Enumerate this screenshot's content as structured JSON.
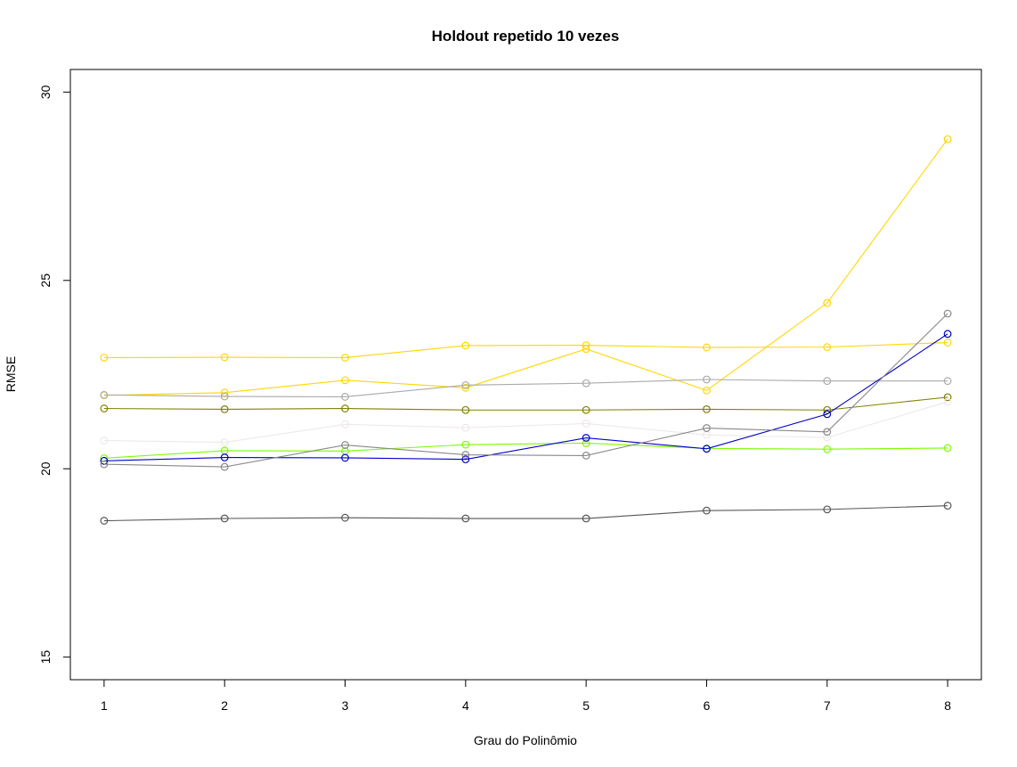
{
  "chart_data": {
    "type": "line",
    "title": "Holdout repetido 10 vezes",
    "xlabel": "Grau do Polinômio",
    "ylabel": "RMSE",
    "x": [
      1,
      2,
      3,
      4,
      5,
      6,
      7,
      8
    ],
    "xlim": [
      0.72,
      8.28
    ],
    "ylim": [
      14.4,
      30.6
    ],
    "yticks": [
      15,
      20,
      25,
      30
    ],
    "xticks": [
      1,
      2,
      3,
      4,
      5,
      6,
      7,
      8
    ],
    "marker": "open-circle",
    "grid": false,
    "series": [
      {
        "color": "#FFD700",
        "values": [
          21.95,
          22.02,
          22.35,
          22.15,
          23.18,
          22.08,
          24.4,
          28.75
        ]
      },
      {
        "color": "#FFD700",
        "values": [
          22.95,
          22.96,
          22.95,
          23.27,
          23.28,
          23.22,
          23.23,
          23.35
        ]
      },
      {
        "color": "#AAAAAA",
        "values": [
          21.96,
          21.92,
          21.91,
          22.22,
          22.27,
          22.37,
          22.33,
          22.33
        ]
      },
      {
        "color": "#808000",
        "values": [
          21.6,
          21.58,
          21.6,
          21.56,
          21.56,
          21.58,
          21.56,
          21.9
        ]
      },
      {
        "color": "#EEE8E8",
        "values": [
          20.75,
          20.7,
          21.18,
          21.09,
          21.2,
          20.9,
          20.83,
          21.78
        ]
      },
      {
        "color": "#7CFC00",
        "values": [
          20.28,
          20.48,
          20.47,
          20.64,
          20.68,
          20.54,
          20.52,
          20.55
        ]
      },
      {
        "color": "#0000CD",
        "values": [
          20.21,
          20.3,
          20.29,
          20.25,
          20.82,
          20.53,
          21.45,
          23.58
        ]
      },
      {
        "color": "#888888",
        "values": [
          20.12,
          20.05,
          20.63,
          20.37,
          20.35,
          21.08,
          20.98,
          24.12
        ]
      },
      {
        "color": "#555555",
        "values": [
          18.62,
          18.68,
          18.7,
          18.68,
          18.68,
          18.89,
          18.92,
          19.02
        ]
      }
    ]
  }
}
